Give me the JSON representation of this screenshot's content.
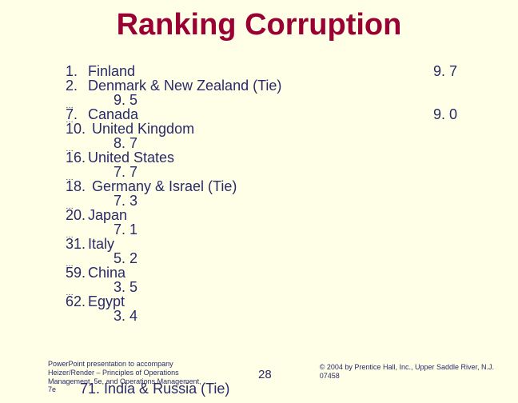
{
  "title": "Ranking Corruption",
  "rows": [
    {
      "num": "1.",
      "name": "Finland",
      "score": "9. 7",
      "scoreRight": true
    },
    {
      "num": "2.",
      "name": "Denmark & New Zealand (Tie)",
      "score": "9. 5",
      "scoreRight": false
    },
    {
      "ellipsis": true
    },
    {
      "num": "7.",
      "name": "Canada",
      "score": "9. 0",
      "scoreRight": true
    },
    {
      "ellipsis": true
    },
    {
      "num": "10.",
      "name": " United Kingdom",
      "score": "8. 7",
      "scoreRight": false
    },
    {
      "ellipsis": true
    },
    {
      "num": "16.",
      "name": "United States",
      "score": "7. 7",
      "scoreRight": false
    },
    {
      "ellipsis": true
    },
    {
      "num": "18.",
      "name": " Germany & Israel (Tie)",
      "score": "7. 3",
      "scoreRight": false
    },
    {
      "ellipsis": true
    },
    {
      "num": "20.",
      "name": "Japan",
      "score": "7. 1",
      "scoreRight": false
    },
    {
      "ellipsis": true
    },
    {
      "num": "31.",
      "name": "Italy",
      "score": "5. 2",
      "scoreRight": false
    },
    {
      "ellipsis": true
    },
    {
      "num": "59.",
      "name": "China",
      "score": "3. 5",
      "scoreRight": false
    },
    {
      "ellipsis": true
    },
    {
      "num": "62.",
      "name": "Egypt",
      "score": "3. 4",
      "scoreRight": false
    }
  ],
  "lastRow": "71. India & Russia (Tie)",
  "pageNumber": "28",
  "creditsLine1": "PowerPoint presentation to accompany",
  "creditsLine2": "Heizer/Render – Principles of Operations",
  "creditsLine3": "Management, 5e, and Operations Management,",
  "creditsLine4": "7e",
  "copyrightLine1": "© 2004 by Prentice Hall, Inc., Upper Saddle River, N.J.",
  "copyrightLine2": "07458",
  "colors": {
    "background": "#ffffe8",
    "title": "#9a0033",
    "body": "#2a2a6a"
  }
}
